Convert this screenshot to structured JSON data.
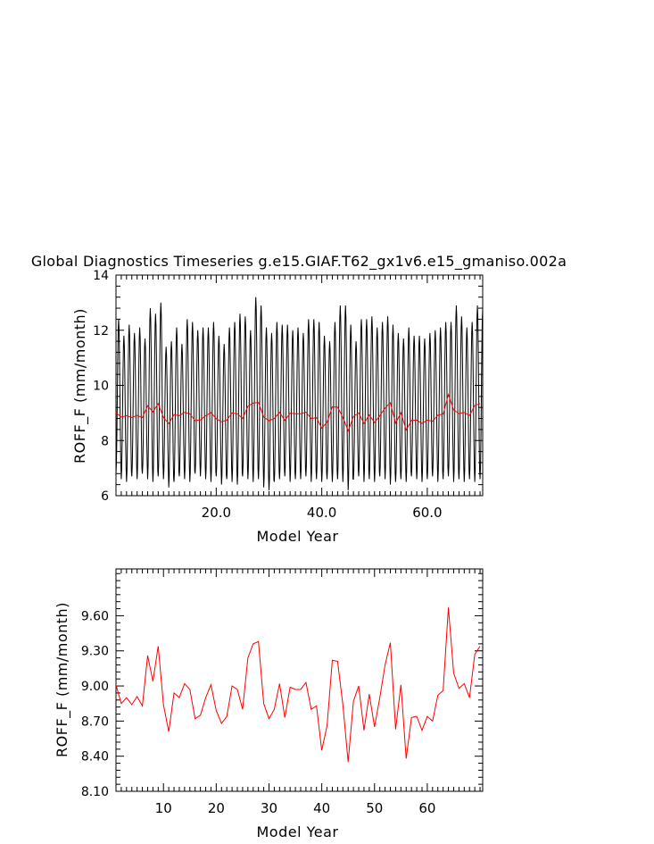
{
  "title": "Global Diagnostics Timeseries g.e15.GIAF.T62_gx1v6.e15_gmaniso.002a",
  "chart_data": [
    {
      "type": "line",
      "xlabel": "Model Year",
      "ylabel": "ROFF_F (mm/month)",
      "xlim": [
        1,
        70.5
      ],
      "ylim": [
        6,
        14
      ],
      "xticks": [
        20,
        40,
        60
      ],
      "xtick_labels": [
        "20.0",
        "40.0",
        "60.0"
      ],
      "yticks": [
        6,
        8,
        10,
        12,
        14
      ],
      "ytick_labels": [
        "6",
        "8",
        "10",
        "12",
        "14"
      ],
      "grid": false,
      "monthly_high": [
        12.4,
        11.8,
        12.2,
        11.9,
        12.1,
        11.7,
        12.8,
        12.6,
        13.0,
        11.4,
        11.6,
        12.1,
        11.5,
        12.4,
        12.3,
        12.0,
        12.1,
        12.1,
        12.3,
        11.8,
        11.5,
        12.1,
        12.3,
        12.6,
        12.5,
        12.0,
        13.2,
        12.9,
        12.1,
        11.9,
        12.3,
        12.2,
        12.2,
        12.0,
        12.1,
        11.9,
        12.4,
        12.4,
        12.3,
        11.8,
        11.6,
        12.3,
        12.9,
        12.9,
        12.2,
        11.6,
        12.4,
        12.4,
        12.5,
        12.1,
        12.3,
        12.5,
        12.2,
        11.9,
        11.7,
        12.1,
        11.8,
        11.8,
        11.7,
        11.9,
        12.0,
        12.1,
        12.3,
        12.3,
        12.9,
        12.5,
        12.1,
        12.3,
        12.9,
        12.8
      ],
      "monthly_low": [
        6.8,
        6.6,
        6.5,
        6.7,
        6.6,
        6.8,
        6.6,
        6.5,
        6.7,
        6.6,
        6.3,
        6.5,
        6.7,
        6.6,
        6.5,
        6.8,
        6.7,
        6.6,
        6.5,
        6.7,
        6.4,
        6.6,
        6.5,
        6.4,
        6.7,
        6.6,
        6.5,
        6.6,
        6.3,
        6.2,
        6.5,
        6.6,
        6.7,
        6.5,
        6.6,
        6.6,
        6.7,
        6.5,
        6.6,
        6.5,
        6.6,
        6.5,
        6.6,
        6.5,
        6.2,
        6.6,
        6.7,
        6.5,
        6.6,
        6.5,
        6.7,
        6.6,
        6.4,
        6.5,
        6.6,
        6.5,
        6.7,
        6.6,
        6.5,
        6.6,
        6.7,
        6.5,
        6.6,
        6.7,
        6.5,
        6.6,
        6.5,
        6.6,
        6.5,
        6.6
      ],
      "series": [
        {
          "color": "#ff0000",
          "x": [
            1,
            2,
            3,
            4,
            5,
            6,
            7,
            8,
            9,
            10,
            11,
            12,
            13,
            14,
            15,
            16,
            17,
            18,
            19,
            20,
            21,
            22,
            23,
            24,
            25,
            26,
            27,
            28,
            29,
            30,
            31,
            32,
            33,
            34,
            35,
            36,
            37,
            38,
            39,
            40,
            41,
            42,
            43,
            44,
            45,
            46,
            47,
            48,
            49,
            50,
            51,
            52,
            53,
            54,
            55,
            56,
            57,
            58,
            59,
            60,
            61,
            62,
            63,
            64,
            65,
            66,
            67,
            68,
            69,
            70
          ],
          "values": [
            9.01,
            8.85,
            8.9,
            8.84,
            8.91,
            8.83,
            9.26,
            9.04,
            9.34,
            8.84,
            8.61,
            8.94,
            8.9,
            9.02,
            8.97,
            8.72,
            8.75,
            8.9,
            9.01,
            8.79,
            8.68,
            8.74,
            9.0,
            8.97,
            8.8,
            9.24,
            9.36,
            9.38,
            8.85,
            8.72,
            8.8,
            9.02,
            8.73,
            8.99,
            8.97,
            8.97,
            9.03,
            8.8,
            8.83,
            8.45,
            8.66,
            9.22,
            9.21,
            8.84,
            8.35,
            8.87,
            9.0,
            8.62,
            8.93,
            8.65,
            8.9,
            9.18,
            9.37,
            8.63,
            9.01,
            8.38,
            8.73,
            8.74,
            8.62,
            8.74,
            8.7,
            8.92,
            8.96,
            9.67,
            9.11,
            8.98,
            9.02,
            8.9,
            9.27,
            9.34
          ]
        }
      ]
    },
    {
      "type": "line",
      "xlabel": "Model Year",
      "ylabel": "ROFF_F (mm/month)",
      "xlim": [
        1,
        70.5
      ],
      "ylim": [
        8.1,
        10.0
      ],
      "xticks": [
        10,
        20,
        30,
        40,
        50,
        60
      ],
      "xtick_labels": [
        "10",
        "20",
        "30",
        "40",
        "50",
        "60"
      ],
      "yticks": [
        8.1,
        8.4,
        8.7,
        9.0,
        9.3,
        9.6
      ],
      "ytick_labels": [
        "8.10",
        "8.40",
        "8.70",
        "9.00",
        "9.30",
        "9.60"
      ],
      "grid": false,
      "series": [
        {
          "color": "#ff0000",
          "x": [
            1,
            2,
            3,
            4,
            5,
            6,
            7,
            8,
            9,
            10,
            11,
            12,
            13,
            14,
            15,
            16,
            17,
            18,
            19,
            20,
            21,
            22,
            23,
            24,
            25,
            26,
            27,
            28,
            29,
            30,
            31,
            32,
            33,
            34,
            35,
            36,
            37,
            38,
            39,
            40,
            41,
            42,
            43,
            44,
            45,
            46,
            47,
            48,
            49,
            50,
            51,
            52,
            53,
            54,
            55,
            56,
            57,
            58,
            59,
            60,
            61,
            62,
            63,
            64,
            65,
            66,
            67,
            68,
            69,
            70
          ],
          "values": [
            9.01,
            8.85,
            8.9,
            8.84,
            8.91,
            8.83,
            9.26,
            9.04,
            9.34,
            8.84,
            8.61,
            8.94,
            8.9,
            9.02,
            8.97,
            8.72,
            8.75,
            8.9,
            9.01,
            8.79,
            8.68,
            8.74,
            9.0,
            8.97,
            8.8,
            9.24,
            9.36,
            9.38,
            8.85,
            8.72,
            8.8,
            9.02,
            8.73,
            8.99,
            8.97,
            8.97,
            9.03,
            8.8,
            8.83,
            8.45,
            8.66,
            9.22,
            9.21,
            8.84,
            8.35,
            8.87,
            9.0,
            8.62,
            8.93,
            8.65,
            8.9,
            9.18,
            9.37,
            8.63,
            9.01,
            8.38,
            8.73,
            8.74,
            8.62,
            8.74,
            8.7,
            8.92,
            8.96,
            9.67,
            9.11,
            8.98,
            9.02,
            8.9,
            9.27,
            9.34
          ]
        }
      ]
    }
  ]
}
